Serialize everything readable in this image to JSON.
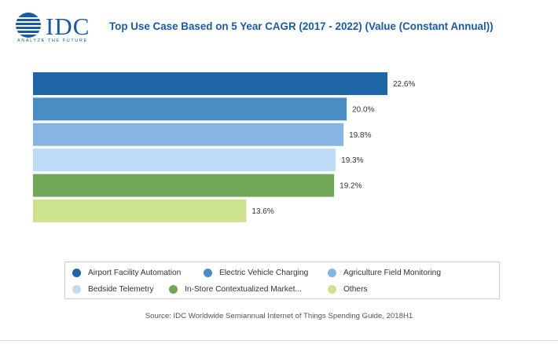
{
  "header": {
    "logo_text": "IDC",
    "logo_tagline": "ANALYZE THE FUTURE",
    "title": "Top Use Case Based on 5 Year CAGR (2017 - 2022) (Value (Constant Annual))"
  },
  "source": "Source: IDC Worldwide Semiannual Internet of Things Spending Guide, 2018H1",
  "colors": {
    "brand": "#1c5aa3"
  },
  "chart_data": {
    "type": "bar",
    "orientation": "horizontal",
    "categories": [
      "Airport Facility Automation",
      "Electric Vehicle Charging",
      "Agriculture Field Monitoring",
      "Bedside Telemetry",
      "In-Store Contextualized Market...",
      "Others"
    ],
    "values": [
      22.6,
      20.0,
      19.8,
      19.3,
      19.2,
      13.6
    ],
    "value_labels": [
      "22.6%",
      "20.0%",
      "19.8%",
      "19.3%",
      "19.2%",
      "13.6%"
    ],
    "colors": [
      "#1f66a6",
      "#4a8cc4",
      "#85b5e0",
      "#bedcf6",
      "#6fa858",
      "#cde28e"
    ],
    "xlim": [
      0,
      22.6
    ],
    "grid": false,
    "legend_position": "bottom"
  }
}
